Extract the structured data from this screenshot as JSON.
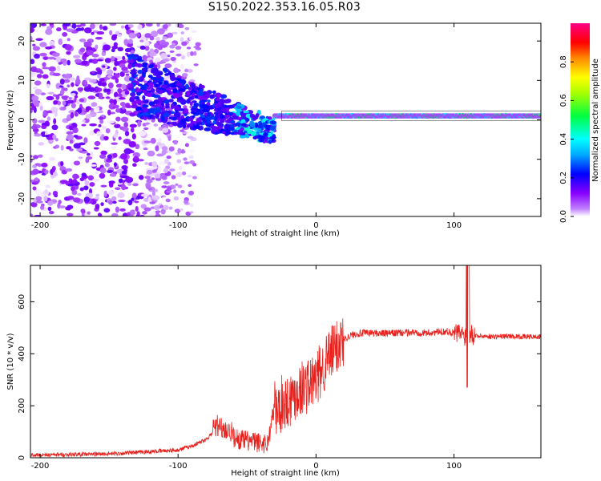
{
  "title": "S150.2022.353.16.05.R03",
  "chart_data": [
    {
      "type": "heatmap",
      "xlabel": "Height of straight line (km)",
      "ylabel": "Frequency (Hz)",
      "xlim": [
        -207,
        163
      ],
      "ylim": [
        -24.5,
        24.5
      ],
      "xticks": [
        -200,
        -100,
        0,
        100
      ],
      "yticks": [
        -20,
        -10,
        0,
        10,
        20
      ],
      "grid": false,
      "colorbar": {
        "label": "Normalized spectral amplitude",
        "range": [
          0,
          1
        ],
        "ticks": [
          "0.0",
          "0.2",
          "0.4",
          "0.6",
          "0.8"
        ],
        "tick_values": [
          0.0,
          0.2,
          0.4,
          0.6,
          0.8
        ],
        "colors": [
          "#ffffff",
          "#8800ff",
          "#0000ff",
          "#00ffff",
          "#00ff00",
          "#ffff00",
          "#ff0000",
          "#ff0088"
        ]
      },
      "description_regions": [
        {
          "x_range": [
            -207,
            -110
          ],
          "y_range": [
            -24.5,
            24.5
          ],
          "amplitude": 0.1
        },
        {
          "x_range": [
            -130,
            -30
          ],
          "y_range": [
            -8,
            12
          ],
          "amplitude": 0.25
        },
        {
          "x_range": [
            -30,
            163
          ],
          "y_range": [
            0,
            2
          ],
          "amplitude": 0.85
        }
      ]
    },
    {
      "type": "line",
      "xlabel": "Height of straight line (km)",
      "ylabel": "SNR (10 * v/v)",
      "xlim": [
        -207,
        163
      ],
      "ylim": [
        0,
        740
      ],
      "xticks": [
        -200,
        -100,
        0,
        100
      ],
      "yticks": [
        0,
        200,
        400,
        600
      ],
      "grid": false,
      "series": [
        {
          "color": "#e8211d",
          "x": [
            -207,
            -180,
            -150,
            -130,
            -115,
            -100,
            -90,
            -80,
            -72,
            -65,
            -55,
            -45,
            -35,
            -30,
            -28,
            -25,
            -20,
            -15,
            -10,
            -5,
            0,
            5,
            10,
            15,
            20,
            25,
            30,
            40,
            50,
            60,
            70,
            80,
            90,
            95,
            100,
            105,
            108,
            110,
            112,
            115,
            120,
            130,
            140,
            150,
            160,
            163
          ],
          "y": [
            10,
            12,
            15,
            20,
            25,
            30,
            45,
            70,
            110,
            90,
            70,
            60,
            55,
            200,
            170,
            210,
            220,
            250,
            270,
            280,
            300,
            350,
            390,
            430,
            455,
            470,
            478,
            480,
            478,
            480,
            482,
            480,
            484,
            486,
            480,
            478,
            470,
            475,
            480,
            470,
            468,
            466,
            468,
            466,
            465,
            465
          ]
        }
      ],
      "annotations": [
        {
          "x": 110,
          "y": 730,
          "text": ""
        }
      ]
    }
  ]
}
